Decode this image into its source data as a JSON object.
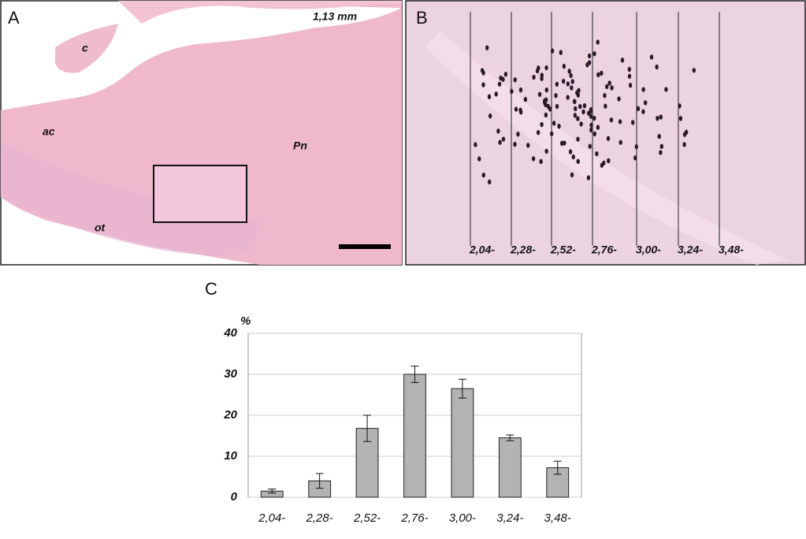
{
  "panels": {
    "a": {
      "label": "A",
      "scale": "1,13 mm",
      "regions": [
        "c",
        "ac",
        "Pn",
        "ot"
      ]
    },
    "b": {
      "label": "B"
    }
  },
  "chart_data": {
    "type": "bar",
    "panel_label": "C",
    "y_label": "%",
    "categories": [
      "2,04-",
      "2,28-",
      "2,52-",
      "2,76-",
      "3,00-",
      "3,24-",
      "3,48-"
    ],
    "values": [
      1.5,
      4,
      16.8,
      30,
      26.5,
      14.5,
      7.2
    ],
    "errors": [
      0.5,
      1.8,
      3.2,
      2,
      2.3,
      0.7,
      1.6
    ],
    "color": "#b3b3b3",
    "ylim": [
      0,
      40
    ],
    "yticks": [
      0,
      10,
      20,
      30,
      40
    ],
    "grid": true
  }
}
